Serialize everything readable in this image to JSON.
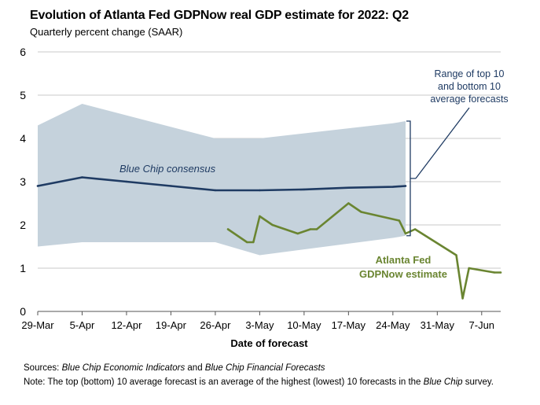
{
  "title": "Evolution of Atlanta Fed GDPNow real GDP estimate for 2022: Q2",
  "subtitle": "Quarterly percent change (SAAR)",
  "colors": {
    "band": "#c5d2dc",
    "blue_chip": "#1f3b63",
    "gdpnow": "#6a8531",
    "grid": "#c9c9c9"
  },
  "chart_data": {
    "type": "line",
    "x_unit": "days since 29-Mar (2022)",
    "xlim": [
      0,
      73
    ],
    "ylim": [
      0,
      6
    ],
    "y_ticks": [
      0,
      1,
      2,
      3,
      4,
      5,
      6
    ],
    "x_ticks": [
      {
        "day": 0,
        "label": "29-Mar"
      },
      {
        "day": 7,
        "label": "5-Apr"
      },
      {
        "day": 14,
        "label": "12-Apr"
      },
      {
        "day": 21,
        "label": "19-Apr"
      },
      {
        "day": 28,
        "label": "26-Apr"
      },
      {
        "day": 35,
        "label": "3-May"
      },
      {
        "day": 42,
        "label": "10-May"
      },
      {
        "day": 49,
        "label": "17-May"
      },
      {
        "day": 56,
        "label": "24-May"
      },
      {
        "day": 63,
        "label": "31-May"
      },
      {
        "day": 70,
        "label": "7-Jun"
      }
    ],
    "xlabel": "Date of forecast",
    "ylabel": "",
    "grid": true,
    "band": {
      "name": "Range of top 10 and bottom 10 average forecasts",
      "x": [
        0,
        7,
        28,
        35,
        56,
        58
      ],
      "upper": [
        4.3,
        4.8,
        4.0,
        4.0,
        4.35,
        4.4
      ],
      "lower": [
        1.5,
        1.6,
        1.6,
        1.3,
        1.7,
        1.75
      ]
    },
    "series": [
      {
        "name": "Blue Chip consensus",
        "x": [
          0,
          7,
          14,
          21,
          28,
          35,
          42,
          49,
          56,
          58
        ],
        "values": [
          2.9,
          3.1,
          3.0,
          2.9,
          2.8,
          2.8,
          2.82,
          2.86,
          2.88,
          2.9
        ]
      },
      {
        "name": "Atlanta Fed GDPNow estimate",
        "x": [
          30,
          33,
          34,
          35,
          37,
          41,
          43,
          44,
          49,
          51,
          57,
          58,
          59.5,
          66,
          67,
          68,
          72,
          73
        ],
        "values": [
          1.9,
          1.6,
          1.6,
          2.2,
          2.0,
          1.8,
          1.9,
          1.9,
          2.5,
          2.3,
          2.1,
          1.8,
          1.9,
          1.3,
          0.3,
          1.0,
          0.9,
          0.9
        ]
      }
    ],
    "annotations": {
      "band_label_lines": [
        "Range of top 10",
        "and bottom 10",
        "average forecasts"
      ],
      "blue_chip_label": "Blue Chip consensus",
      "gdpnow_label_lines": [
        "Atlanta Fed",
        "GDPNow estimate"
      ]
    }
  },
  "notes": {
    "sources_label": "Sources:",
    "sources_part1": "Blue Chip Economic Indicators",
    "sources_and": "and",
    "sources_part2": "Blue Chip Financial Forecasts",
    "note_label": "Note:",
    "note_text_before": "The top (bottom) 10 average forecast is an average of the highest (lowest) 10 forecasts in the",
    "note_survey_name": "Blue Chip",
    "note_text_after": "survey."
  }
}
